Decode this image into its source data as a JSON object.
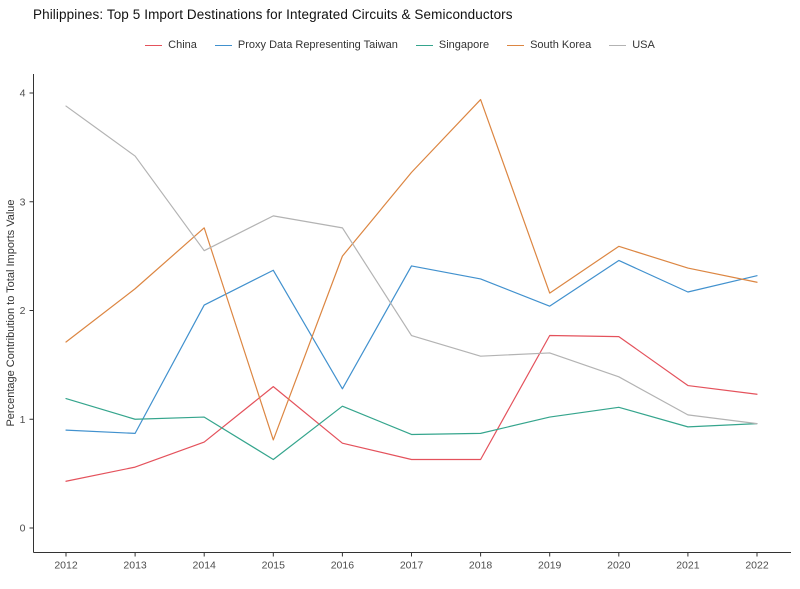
{
  "page": {
    "title": "Philippines: Top 5 Import Destinations for Integrated Circuits & Semiconductors"
  },
  "chart_data": {
    "type": "line",
    "title": "Philippines: Top 5 Import Destinations for Integrated Circuits & Semiconductors",
    "xlabel": "",
    "ylabel": "Percentage Contribution to Total Imports Value",
    "x": [
      2012,
      2013,
      2014,
      2015,
      2016,
      2017,
      2018,
      2019,
      2020,
      2021,
      2022
    ],
    "yticks": [
      0,
      1,
      2,
      3,
      4
    ],
    "ylim": [
      0,
      4.15
    ],
    "grid": false,
    "legend_position": "top-center",
    "axis_color": "#333333",
    "tick_label_color": "#4d4d4d",
    "series": [
      {
        "name": "China",
        "color": "#e4525c",
        "values": [
          0.43,
          0.56,
          0.79,
          1.3,
          0.78,
          0.63,
          0.63,
          1.77,
          1.76,
          1.31,
          1.23
        ]
      },
      {
        "name": "Proxy Data Representing Taiwan",
        "color": "#4191ce",
        "values": [
          0.9,
          0.87,
          2.05,
          2.37,
          1.28,
          2.41,
          2.29,
          2.04,
          2.46,
          2.17,
          2.32
        ]
      },
      {
        "name": "Singapore",
        "color": "#35a58d",
        "values": [
          1.19,
          1.0,
          1.02,
          0.63,
          1.12,
          0.86,
          0.87,
          1.02,
          1.11,
          0.93,
          0.96
        ]
      },
      {
        "name": "South Korea",
        "color": "#dc8642",
        "values": [
          1.71,
          2.2,
          2.76,
          0.81,
          2.5,
          3.27,
          3.94,
          2.16,
          2.59,
          2.39,
          2.26
        ]
      },
      {
        "name": "USA",
        "color": "#b3b3b3",
        "values": [
          3.88,
          3.42,
          2.55,
          2.87,
          2.76,
          1.77,
          1.58,
          1.61,
          1.39,
          1.04,
          0.96
        ]
      }
    ]
  }
}
